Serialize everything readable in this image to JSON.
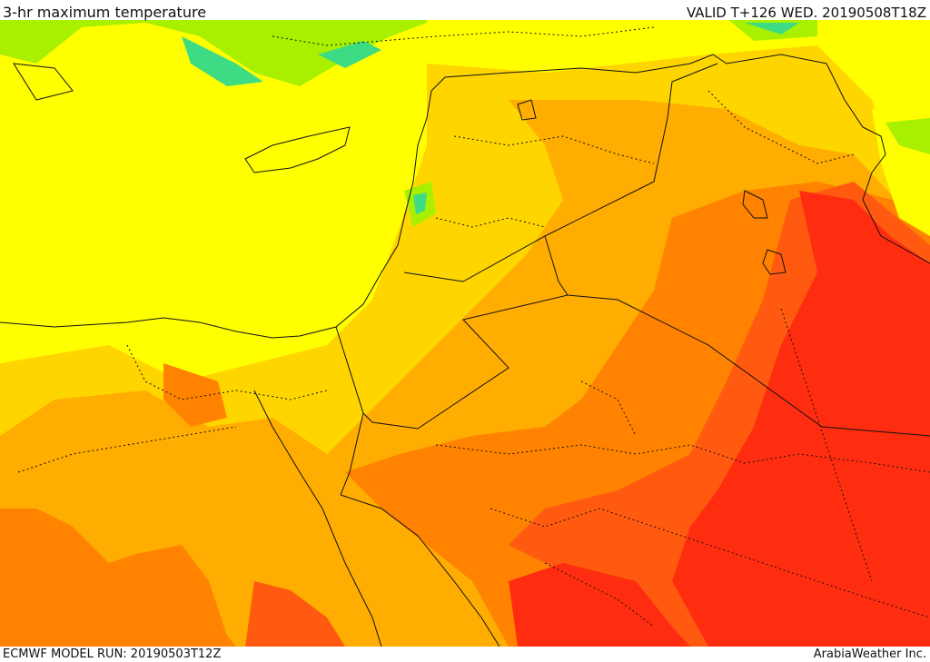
{
  "header": {
    "title": "3-hr maximum temperature",
    "valid": "VALID T+126 WED. 20190508T18Z"
  },
  "footer": {
    "model_run": "ECMWF MODEL RUN: 20190503T12Z",
    "credit": "ArabiaWeather Inc."
  },
  "colors": {
    "cool_green": "#3ddc84",
    "light_green": "#a8f000",
    "yellow": "#ffff00",
    "gold": "#ffd500",
    "amber": "#ffad00",
    "orange": "#ff8300",
    "red_orange": "#ff5a10",
    "red": "#ff2d10",
    "border": "#111111"
  }
}
